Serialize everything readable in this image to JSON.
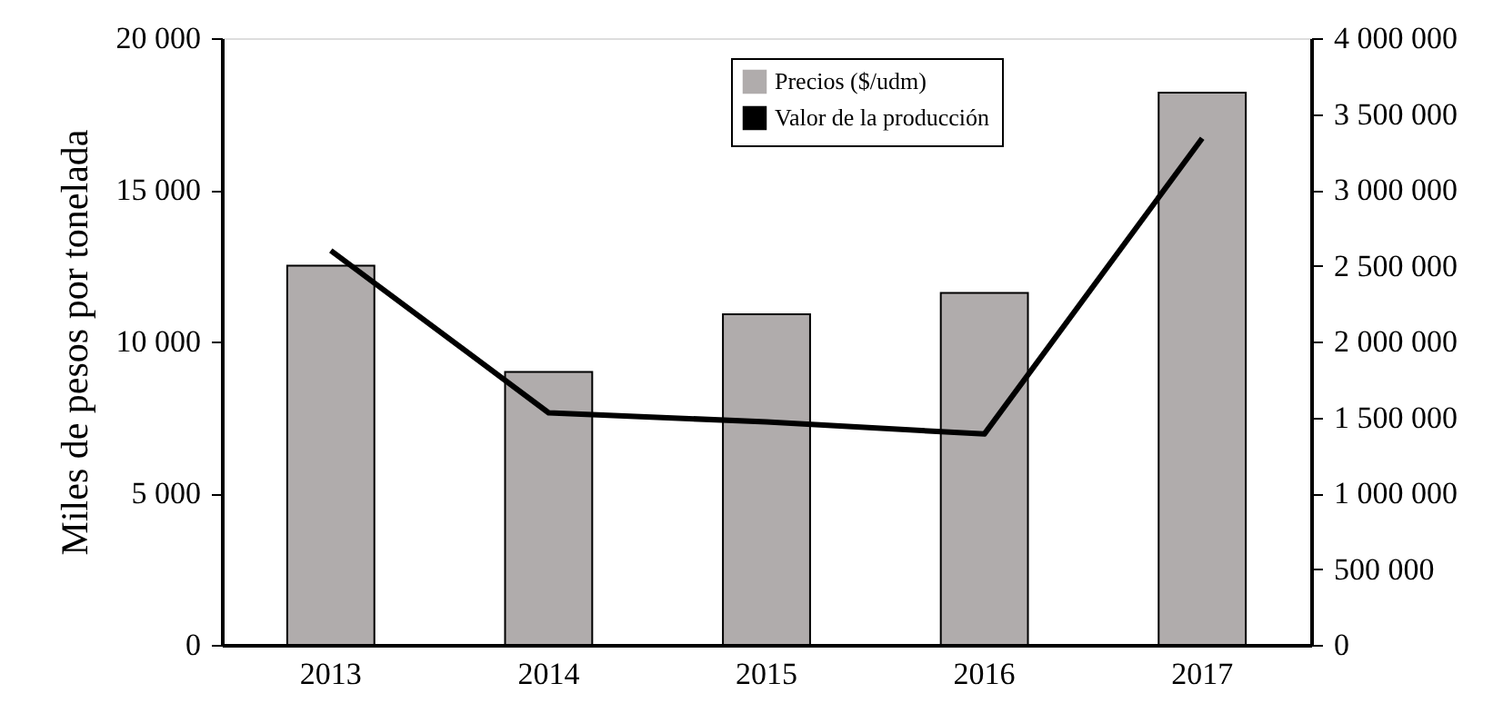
{
  "chart_data": {
    "type": "bar",
    "categories": [
      "2013",
      "2014",
      "2015",
      "2016",
      "2017"
    ],
    "ylabel": "Miles de pesos por tonelada",
    "ylim": [
      0,
      20000
    ],
    "yticks": [
      {
        "value": 0,
        "label": "0"
      },
      {
        "value": 5000,
        "label": "5 000"
      },
      {
        "value": 10000,
        "label": "10 000"
      },
      {
        "value": 15000,
        "label": "15 000"
      },
      {
        "value": 20000,
        "label": "20 000"
      }
    ],
    "y2lim": [
      0,
      4000000
    ],
    "y2ticks": [
      {
        "value": 0,
        "label": "0"
      },
      {
        "value": 500000,
        "label": "500 000"
      },
      {
        "value": 1000000,
        "label": "1 000 000"
      },
      {
        "value": 1500000,
        "label": "1 500 000"
      },
      {
        "value": 2000000,
        "label": "2 000 000"
      },
      {
        "value": 2500000,
        "label": "2 500 000"
      },
      {
        "value": 3000000,
        "label": "3 000 000"
      },
      {
        "value": 3500000,
        "label": "3 500 000"
      },
      {
        "value": 4000000,
        "label": "4 000 000"
      }
    ],
    "legend": "top",
    "grid": false,
    "series": [
      {
        "name": "Precios ($/udm)",
        "color": "#b0acac",
        "values": [
          12500,
          9000,
          10900,
          11600,
          18200
        ]
      },
      {
        "name": "Valor de la producción",
        "type": "line",
        "axis": "y2",
        "color": "#000000",
        "values": [
          2600000,
          1530000,
          1470000,
          1390000,
          3340000
        ]
      }
    ]
  }
}
